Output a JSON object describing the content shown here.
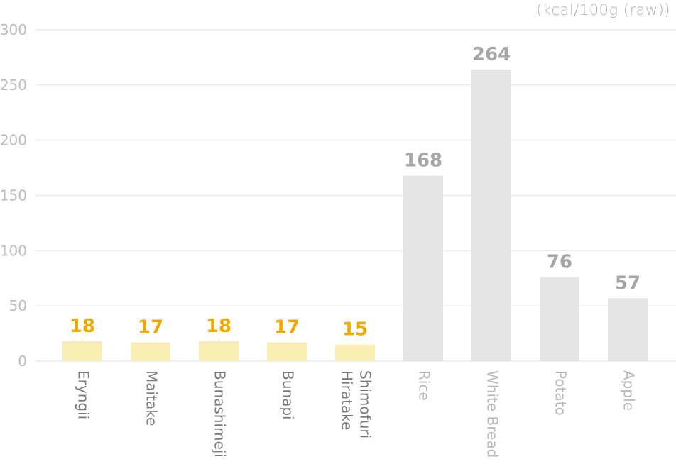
{
  "chart_data": {
    "type": "bar",
    "unit_label": "(kcal/100g (raw))",
    "categories": [
      "Eryngii",
      "Maitake",
      "Bunashimeji",
      "Bunapi",
      "Shimofuri Hiratake",
      "Rice",
      "White Bread",
      "Potato",
      "Apple"
    ],
    "category_lines": [
      [
        "Eryngii"
      ],
      [
        "Maitake"
      ],
      [
        "Bunashimeji"
      ],
      [
        "Bunapi"
      ],
      [
        "Shimofuri",
        "Hiratake"
      ],
      [
        "Rice"
      ],
      [
        "White Bread"
      ],
      [
        "Potato"
      ],
      [
        "Apple"
      ]
    ],
    "values": [
      18,
      17,
      18,
      17,
      15,
      168,
      264,
      76,
      57
    ],
    "groups": [
      "mushroom",
      "mushroom",
      "mushroom",
      "mushroom",
      "mushroom",
      "other",
      "other",
      "other",
      "other"
    ],
    "ylim": [
      0,
      300
    ],
    "yticks": [
      0,
      50,
      100,
      150,
      200,
      250,
      300
    ],
    "grid": true,
    "colors": {
      "mushroom_bar": "#f9edb3",
      "mushroom_label": "#f2a800",
      "other_bar": "#e6e6e6",
      "other_label": "#a6a6a6"
    }
  }
}
